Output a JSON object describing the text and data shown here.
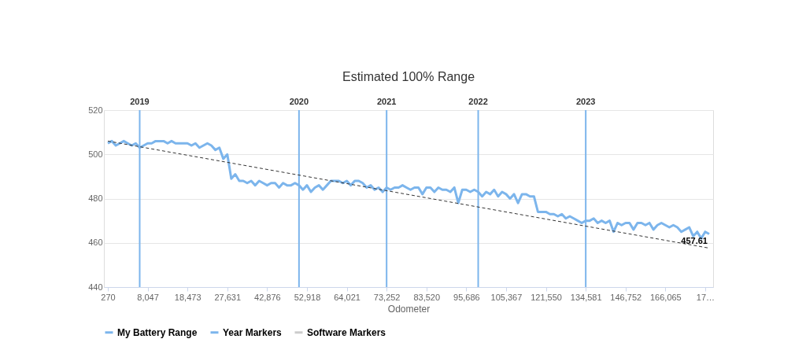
{
  "chart_data": {
    "type": "line",
    "title": "Estimated 100% Range",
    "xlabel": "Odometer",
    "categories": [
      "270",
      null,
      null,
      null,
      null,
      null,
      null,
      null,
      null,
      null,
      "8,047",
      null,
      null,
      null,
      null,
      null,
      null,
      null,
      null,
      null,
      "18,473",
      null,
      null,
      null,
      null,
      null,
      null,
      null,
      null,
      null,
      "27,631",
      null,
      null,
      null,
      null,
      null,
      null,
      null,
      null,
      null,
      "42,876",
      null,
      null,
      null,
      null,
      null,
      null,
      null,
      null,
      null,
      "52,918",
      null,
      null,
      null,
      null,
      null,
      null,
      null,
      null,
      null,
      "64,021",
      null,
      null,
      null,
      null,
      null,
      null,
      null,
      null,
      null,
      "73,252",
      null,
      null,
      null,
      null,
      null,
      null,
      null,
      null,
      null,
      "83,520",
      null,
      null,
      null,
      null,
      null,
      null,
      null,
      null,
      null,
      "95,686",
      null,
      null,
      null,
      null,
      null,
      null,
      null,
      null,
      null,
      "105,367",
      null,
      null,
      null,
      null,
      null,
      null,
      null,
      null,
      null,
      "121,550",
      null,
      null,
      null,
      null,
      null,
      null,
      null,
      null,
      null,
      "134,581",
      null,
      null,
      null,
      null,
      null,
      null,
      null,
      null,
      null,
      "146,752",
      null,
      null,
      null,
      null,
      null,
      null,
      null,
      null,
      null,
      "166,065",
      null,
      null,
      null,
      null,
      null,
      null,
      null,
      null,
      null,
      "17…",
      null
    ],
    "series": [
      {
        "name": "My Battery Range",
        "color": "#7cb5ec",
        "values": [
          505,
          506,
          504,
          505,
          506,
          505,
          504,
          505,
          503,
          504,
          505,
          505,
          506,
          506,
          506,
          505,
          506,
          505,
          505,
          505,
          505,
          504,
          505,
          503,
          504,
          505,
          504,
          502,
          503,
          498,
          500,
          489,
          491,
          488,
          488,
          487,
          488,
          486,
          488,
          487,
          486,
          487,
          487,
          485,
          487,
          486,
          486,
          487,
          486,
          484,
          486,
          483,
          485,
          486,
          484,
          486,
          488,
          488,
          488,
          487,
          488,
          486,
          488,
          488,
          487,
          485,
          486,
          484,
          485,
          483,
          485,
          484,
          485,
          485,
          486,
          485,
          484,
          485,
          485,
          482,
          485,
          485,
          483,
          485,
          484,
          484,
          483,
          485,
          478,
          484,
          484,
          483,
          484,
          483,
          481,
          483,
          482,
          484,
          481,
          483,
          482,
          480,
          482,
          478,
          482,
          482,
          481,
          481,
          474,
          474,
          474,
          473,
          473,
          472,
          473,
          471,
          472,
          471,
          470,
          469,
          470,
          470,
          471,
          469,
          470,
          469,
          470,
          465,
          469,
          468,
          469,
          469,
          466,
          469,
          469,
          468,
          469,
          466,
          468,
          469,
          468,
          467,
          468,
          467,
          465,
          466,
          467,
          463,
          465,
          462,
          465,
          464
        ]
      },
      {
        "name": "Year Markers",
        "type": "bar",
        "color": "#7cb5ec",
        "values": [
          null,
          null,
          null,
          null,
          null,
          null,
          null,
          null,
          520,
          null,
          null,
          null,
          null,
          null,
          null,
          null,
          null,
          null,
          null,
          null,
          null,
          null,
          null,
          null,
          null,
          null,
          null,
          null,
          null,
          null,
          null,
          null,
          null,
          null,
          null,
          null,
          null,
          null,
          null,
          null,
          null,
          null,
          null,
          null,
          null,
          null,
          null,
          null,
          520,
          null,
          null,
          null,
          null,
          null,
          null,
          null,
          null,
          null,
          null,
          null,
          null,
          null,
          null,
          null,
          null,
          null,
          null,
          null,
          null,
          null,
          520,
          null,
          null,
          null,
          null,
          null,
          null,
          null,
          null,
          null,
          null,
          null,
          null,
          null,
          null,
          null,
          null,
          null,
          null,
          null,
          null,
          null,
          null,
          520,
          null,
          null,
          null,
          null,
          null,
          null,
          null,
          null,
          null,
          null,
          null,
          null,
          null,
          null,
          null,
          null,
          null,
          null,
          null,
          null,
          null,
          null,
          null,
          null,
          null,
          null,
          520,
          null,
          null,
          null,
          null,
          null,
          null,
          null,
          null,
          null,
          null,
          null,
          null,
          null,
          null,
          null,
          null,
          null,
          null,
          null,
          null,
          null,
          null,
          null,
          null,
          null,
          null,
          null,
          null,
          null,
          null,
          null
        ]
      },
      {
        "name": "Software Markers",
        "type": "line",
        "color": "#cccccc",
        "values": [
          null,
          null,
          null,
          null,
          null,
          null,
          null,
          null,
          null,
          null,
          null,
          null,
          null,
          null,
          null,
          null,
          null,
          null,
          null,
          null,
          null,
          null,
          null,
          null,
          null,
          null,
          null,
          null,
          null,
          null,
          null,
          null,
          null,
          null,
          null,
          null,
          null,
          null,
          null,
          null,
          null,
          null,
          null,
          null,
          null,
          null,
          null,
          null,
          null,
          null,
          null,
          null,
          null,
          null,
          null,
          null,
          null,
          null,
          null,
          null,
          null,
          null,
          null,
          null,
          null,
          null,
          null,
          null,
          null,
          null,
          null,
          null,
          null,
          null,
          null,
          null,
          null,
          null,
          null,
          null,
          null,
          null,
          null,
          null,
          null,
          null,
          null,
          null,
          null,
          null,
          null,
          null,
          null,
          null,
          null,
          null,
          null,
          null,
          null,
          null,
          null,
          null,
          null,
          null,
          null,
          null,
          null,
          null,
          null,
          null,
          null,
          null,
          null,
          null,
          null,
          null,
          null,
          null,
          null,
          null,
          null,
          null,
          null,
          null,
          null,
          null,
          null,
          null,
          null,
          null,
          null,
          null,
          null,
          null,
          null,
          null,
          null,
          null,
          null,
          null,
          null,
          null,
          null,
          null,
          null,
          null,
          null,
          null,
          null,
          null,
          null,
          null
        ]
      },
      {
        "type": "line",
        "color": "#333333",
        "line_style": "dashed",
        "values": [
          506,
          null,
          null,
          null,
          null,
          null,
          null,
          null,
          null,
          null,
          null,
          null,
          null,
          null,
          null,
          null,
          null,
          null,
          null,
          null,
          null,
          null,
          null,
          null,
          null,
          null,
          null,
          null,
          null,
          null,
          null,
          null,
          null,
          null,
          null,
          null,
          null,
          null,
          null,
          null,
          null,
          null,
          null,
          null,
          null,
          null,
          null,
          null,
          null,
          null,
          null,
          null,
          null,
          null,
          null,
          null,
          null,
          null,
          null,
          null,
          null,
          null,
          null,
          null,
          null,
          null,
          null,
          null,
          null,
          null,
          null,
          null,
          null,
          null,
          null,
          null,
          null,
          null,
          null,
          null,
          null,
          null,
          null,
          null,
          null,
          null,
          null,
          null,
          null,
          null,
          null,
          null,
          null,
          null,
          null,
          null,
          null,
          null,
          null,
          null,
          null,
          null,
          null,
          null,
          null,
          null,
          null,
          null,
          null,
          null,
          null,
          null,
          null,
          null,
          null,
          null,
          null,
          null,
          null,
          null,
          null,
          null,
          null,
          null,
          null,
          null,
          null,
          null,
          null,
          null,
          null,
          null,
          null,
          null,
          null,
          null,
          null,
          null,
          null,
          null,
          null,
          null,
          null,
          null,
          null,
          null,
          null,
          null,
          null,
          null,
          null,
          457.61
        ],
        "value_labels": [
          null,
          null,
          null,
          null,
          null,
          null,
          null,
          null,
          null,
          null,
          null,
          null,
          null,
          null,
          null,
          null,
          null,
          null,
          null,
          null,
          null,
          null,
          null,
          null,
          null,
          null,
          null,
          null,
          null,
          null,
          null,
          null,
          null,
          null,
          null,
          null,
          null,
          null,
          null,
          null,
          null,
          null,
          null,
          null,
          null,
          null,
          null,
          null,
          null,
          null,
          null,
          null,
          null,
          null,
          null,
          null,
          null,
          null,
          null,
          null,
          null,
          null,
          null,
          null,
          null,
          null,
          null,
          null,
          null,
          null,
          null,
          null,
          null,
          null,
          null,
          null,
          null,
          null,
          null,
          null,
          null,
          null,
          null,
          null,
          null,
          null,
          null,
          null,
          null,
          null,
          null,
          null,
          null,
          null,
          null,
          null,
          null,
          null,
          null,
          null,
          null,
          null,
          null,
          null,
          null,
          null,
          null,
          null,
          null,
          null,
          null,
          null,
          null,
          null,
          null,
          null,
          null,
          null,
          null,
          null,
          null,
          null,
          null,
          null,
          null,
          null,
          null,
          null,
          null,
          null,
          null,
          null,
          null,
          null,
          null,
          null,
          null,
          null,
          null,
          null,
          null,
          null,
          null,
          null,
          null,
          null,
          null,
          null,
          null,
          null,
          null,
          "457.61"
        ]
      }
    ],
    "annotations": [
      {
        "text": "2019",
        "y": 520
      },
      {
        "text": "2020",
        "y": 520
      },
      {
        "text": "2021",
        "y": 520
      },
      {
        "text": "2022",
        "y": 520
      },
      {
        "text": "2023",
        "y": 520
      }
    ],
    "ylim": [
      440,
      520
    ],
    "yticks": [
      440,
      460,
      480,
      500,
      520
    ],
    "grid": "y",
    "legend": "bottom",
    "marker": "none"
  }
}
